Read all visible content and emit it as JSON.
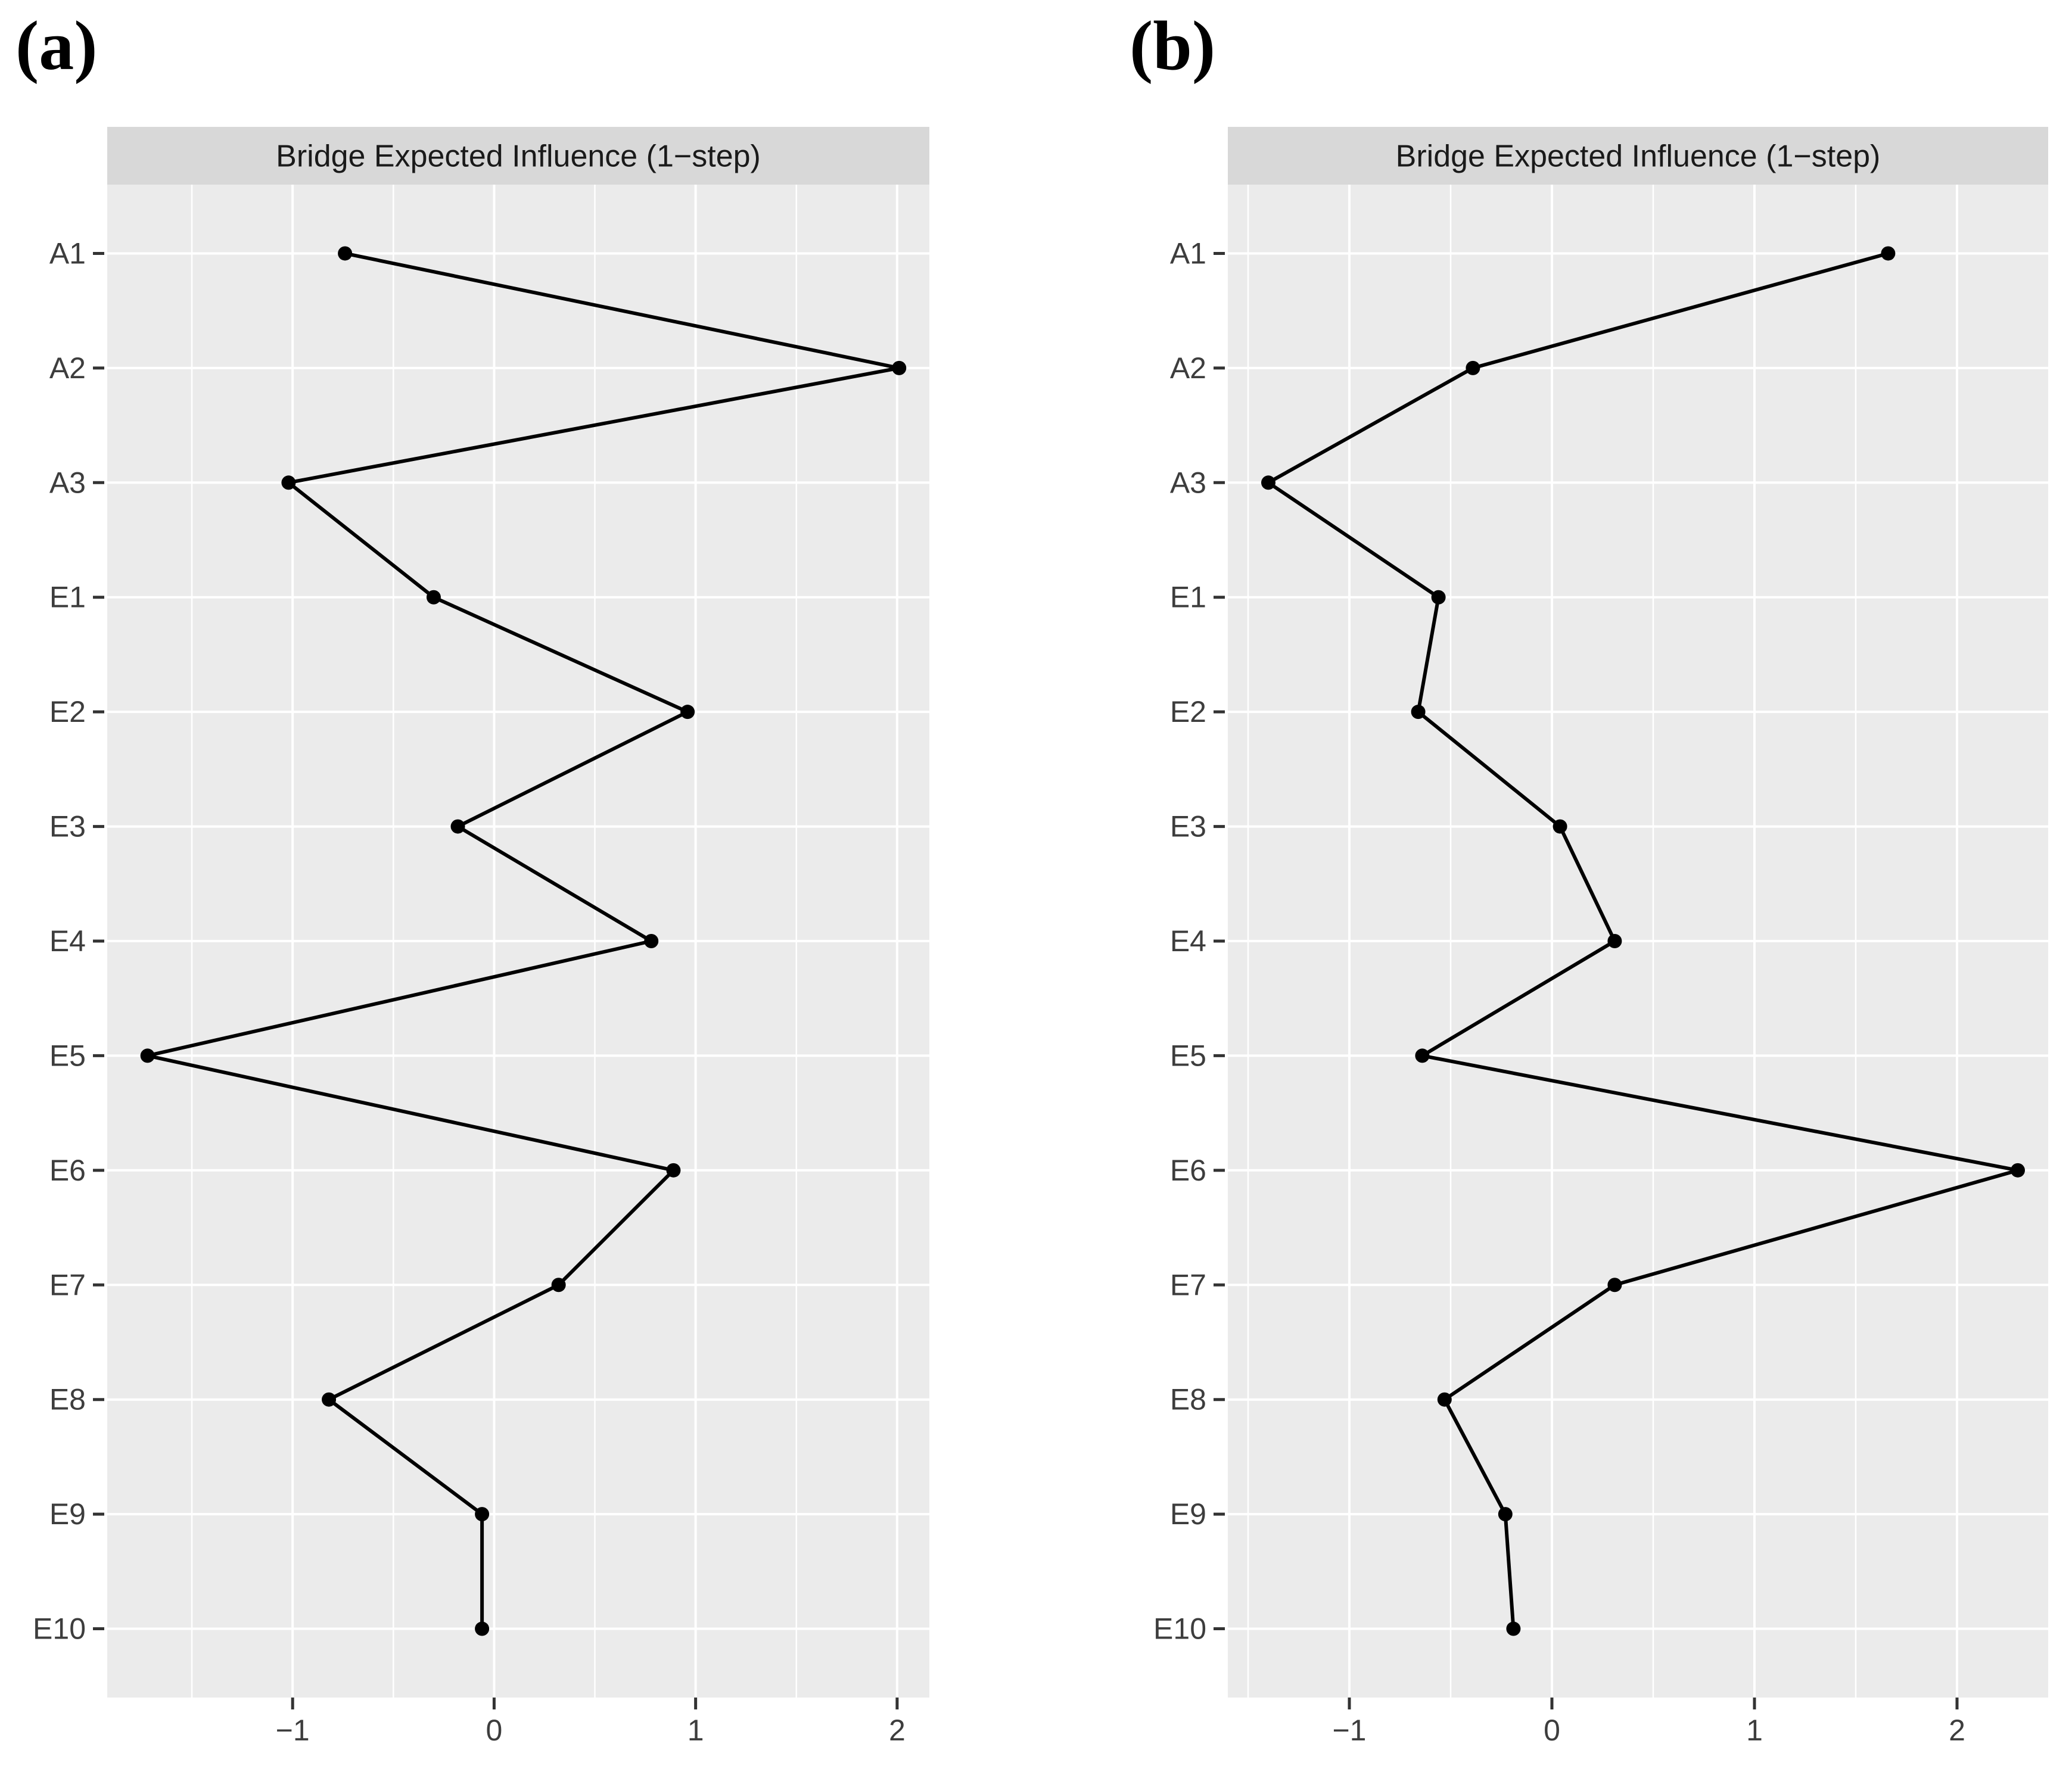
{
  "page": {
    "background": "#ffffff"
  },
  "figures": [
    {
      "panel_label": "(a)"
    },
    {
      "panel_label": "(b)"
    }
  ],
  "colors": {
    "panel_bg": "#ebebeb",
    "strip_bg": "#d8d8d8",
    "grid": "#ffffff",
    "line": "#000000",
    "axis_text": "#3d3d3d",
    "tick_mark": "#333333",
    "title_text": "#1a1a1a"
  },
  "chart_data": [
    {
      "type": "line",
      "title": "Bridge Expected Influence (1−step)",
      "orientation": "categories-on-y",
      "categories": [
        "A1",
        "A2",
        "A3",
        "E1",
        "E2",
        "E3",
        "E4",
        "E5",
        "E6",
        "E7",
        "E8",
        "E9",
        "E10"
      ],
      "values": [
        -0.74,
        2.01,
        -1.02,
        -0.3,
        0.96,
        -0.18,
        0.78,
        -1.72,
        0.89,
        0.32,
        -0.82,
        -0.06,
        -0.06
      ],
      "xlabel": "",
      "ylabel": "",
      "x_ticks": [
        -1,
        0,
        1,
        2
      ],
      "x_minor_ticks": [
        -1.5,
        -0.5,
        0.5,
        1.5
      ],
      "xlim": [
        -1.92,
        2.16
      ],
      "grid": true,
      "legend": "none",
      "marker": "point",
      "line_color": "#000000"
    },
    {
      "type": "line",
      "title": "Bridge Expected Influence (1−step)",
      "orientation": "categories-on-y",
      "categories": [
        "A1",
        "A2",
        "A3",
        "E1",
        "E2",
        "E3",
        "E4",
        "E5",
        "E6",
        "E7",
        "E8",
        "E9",
        "E10"
      ],
      "values": [
        1.66,
        -0.39,
        -1.4,
        -0.56,
        -0.66,
        0.04,
        0.31,
        -0.64,
        2.3,
        0.31,
        -0.53,
        -0.23,
        -0.19
      ],
      "xlabel": "",
      "ylabel": "",
      "x_ticks": [
        -1,
        0,
        1,
        2
      ],
      "x_minor_ticks": [
        -1.5,
        -0.5,
        0.5,
        1.5
      ],
      "xlim": [
        -1.6,
        2.45
      ],
      "grid": true,
      "legend": "none",
      "marker": "point",
      "line_color": "#000000"
    }
  ]
}
